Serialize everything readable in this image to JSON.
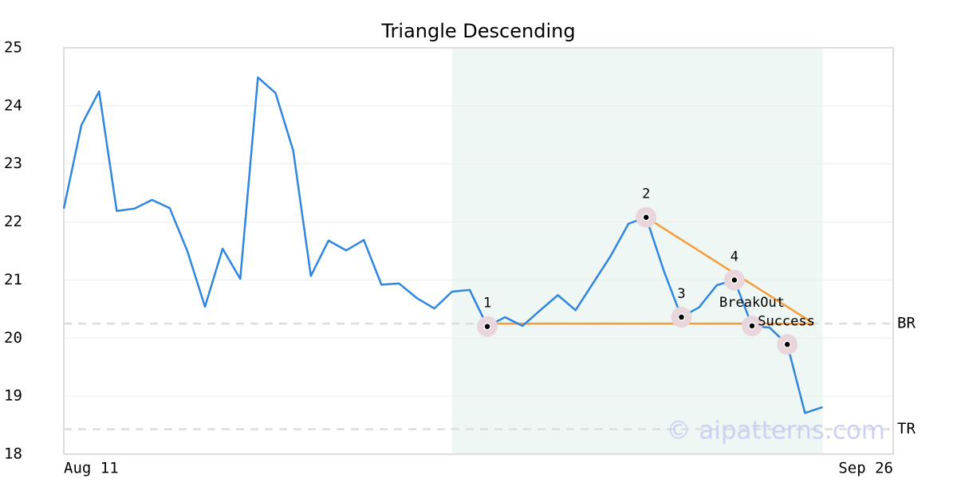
{
  "chart_data": {
    "type": "line",
    "title": "Triangle Descending",
    "categories": [
      "Aug 11",
      null,
      null,
      null,
      null,
      null,
      null,
      null,
      null,
      null,
      null,
      null,
      null,
      null,
      null,
      null,
      null,
      null,
      null,
      null,
      null,
      null,
      null,
      null,
      null,
      null,
      null,
      null,
      null,
      null,
      null,
      null,
      null,
      null,
      null,
      null,
      null,
      null,
      null,
      null,
      null,
      null,
      null,
      null,
      null,
      null,
      null,
      "Sep 26"
    ],
    "series": [
      {
        "color": "#2f86e0",
        "values": [
          22.23,
          23.67,
          24.25,
          22.19,
          22.23,
          22.38,
          22.24,
          21.5,
          20.54,
          21.54,
          21.02,
          24.49,
          24.22,
          23.23,
          21.07,
          21.68,
          21.51,
          21.69,
          20.92,
          20.94,
          20.69,
          20.51,
          20.8,
          20.83,
          20.2,
          20.36,
          20.21,
          20.48,
          20.74,
          20.48,
          20.95,
          21.42,
          21.97,
          22.08,
          21.16,
          20.36,
          20.53,
          20.91,
          21.0,
          20.21,
          20.18,
          19.89,
          18.71,
          18.81,
          null,
          null,
          null,
          null
        ]
      }
    ],
    "ylim": [
      18,
      25
    ],
    "yticks": [
      18,
      19,
      20,
      21,
      22,
      23,
      24,
      25
    ],
    "grid": true,
    "highlight_range": [
      22,
      43
    ],
    "highlight_color": "#eef7f3",
    "trend_lines": [
      {
        "color": "#f59c3c",
        "x": [
          24,
          42.5
        ],
        "y": [
          20.25,
          20.25
        ]
      },
      {
        "color": "#f59c3c",
        "x": [
          33,
          42.5
        ],
        "y": [
          22.08,
          20.25
        ]
      }
    ],
    "annotations": [
      {
        "label": "1",
        "x": 24,
        "y": 20.2
      },
      {
        "label": "2",
        "x": 33,
        "y": 22.08
      },
      {
        "label": "3",
        "x": 35,
        "y": 20.36
      },
      {
        "label": "4",
        "x": 38,
        "y": 21.0
      },
      {
        "label": "BreakOut",
        "x": 39,
        "y": 20.21
      },
      {
        "label": "Success",
        "x": 41,
        "y": 19.89
      }
    ],
    "levels": [
      {
        "label": "BR",
        "value": 20.25
      },
      {
        "label": "TR",
        "value": 18.43
      }
    ],
    "watermark": "© aipatterns.com"
  }
}
